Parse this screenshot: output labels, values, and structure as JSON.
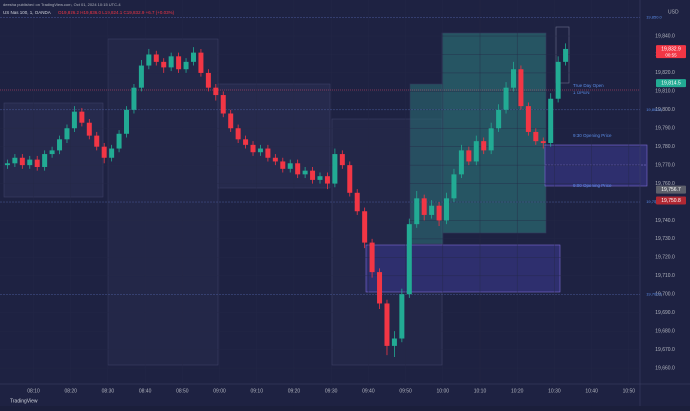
{
  "header": {
    "author": "deesha published on TradingView.com, Oct 01, 2024 10:15 UTC-4",
    "symbol": "US Nas 100, 1, OANDA",
    "readout": "O19,826.2 H19,836.0 L19,824.1 C19,832.9 +6.7 (+0.03%)",
    "currency": "USD",
    "brand": "TradingView"
  },
  "chart_data": {
    "type": "candlestick",
    "up_color": "#22ab94",
    "down_color": "#f23645",
    "x": [
      "08:03",
      "08:05",
      "08:07",
      "08:09",
      "08:11",
      "08:13",
      "08:15",
      "08:17",
      "08:19",
      "08:21",
      "08:23",
      "08:25",
      "08:27",
      "08:29",
      "08:31",
      "08:33",
      "08:35",
      "08:37",
      "08:39",
      "08:41",
      "08:43",
      "08:45",
      "08:47",
      "08:49",
      "08:51",
      "08:53",
      "08:55",
      "08:57",
      "08:59",
      "09:01",
      "09:03",
      "09:05",
      "09:07",
      "09:09",
      "09:11",
      "09:13",
      "09:15",
      "09:17",
      "09:19",
      "09:21",
      "09:23",
      "09:25",
      "09:27",
      "09:29",
      "09:31",
      "09:33",
      "09:35",
      "09:37",
      "09:39",
      "09:41",
      "09:43",
      "09:45",
      "09:47",
      "09:49",
      "09:51",
      "09:53",
      "09:55",
      "09:57",
      "09:59",
      "10:01",
      "10:03",
      "10:05",
      "10:07",
      "10:09",
      "10:11",
      "10:13",
      "10:15",
      "10:17",
      "10:19",
      "10:21",
      "10:23",
      "10:25",
      "10:27",
      "10:29",
      "10:31",
      "10:33"
    ],
    "ohlc": [
      [
        19770,
        19773,
        19768,
        19771
      ],
      [
        19771,
        19776,
        19769,
        19774
      ],
      [
        19774,
        19776,
        19768,
        19770
      ],
      [
        19770,
        19775,
        19768,
        19773
      ],
      [
        19773,
        19775,
        19767,
        19769
      ],
      [
        19769,
        19778,
        19767,
        19776
      ],
      [
        19776,
        19780,
        19774,
        19778
      ],
      [
        19778,
        19786,
        19776,
        19784
      ],
      [
        19784,
        19792,
        19782,
        19790
      ],
      [
        19790,
        19802,
        19788,
        19799
      ],
      [
        19799,
        19801,
        19791,
        19793
      ],
      [
        19793,
        19795,
        19784,
        19786
      ],
      [
        19786,
        19788,
        19778,
        19780
      ],
      [
        19780,
        19782,
        19771,
        19774
      ],
      [
        19774,
        19781,
        19772,
        19779
      ],
      [
        19779,
        19789,
        19777,
        19787
      ],
      [
        19787,
        19802,
        19785,
        19800
      ],
      [
        19800,
        19814,
        19798,
        19812
      ],
      [
        19812,
        19827,
        19810,
        19824
      ],
      [
        19824,
        19833,
        19822,
        19830
      ],
      [
        19830,
        19832,
        19824,
        19826
      ],
      [
        19826,
        19828,
        19820,
        19823
      ],
      [
        19823,
        19831,
        19821,
        19829
      ],
      [
        19829,
        19831,
        19820,
        19822
      ],
      [
        19822,
        19828,
        19820,
        19826
      ],
      [
        19826,
        19834,
        19824,
        19831
      ],
      [
        19831,
        19833,
        19818,
        19820
      ],
      [
        19820,
        19822,
        19810,
        19812
      ],
      [
        19812,
        19814,
        19805,
        19808
      ],
      [
        19808,
        19810,
        19796,
        19798
      ],
      [
        19798,
        19800,
        19788,
        19790
      ],
      [
        19790,
        19792,
        19782,
        19784
      ],
      [
        19784,
        19786,
        19779,
        19781
      ],
      [
        19781,
        19783,
        19775,
        19777
      ],
      [
        19777,
        19781,
        19775,
        19779
      ],
      [
        19779,
        19781,
        19772,
        19774
      ],
      [
        19774,
        19776,
        19770,
        19772
      ],
      [
        19772,
        19774,
        19766,
        19768
      ],
      [
        19768,
        19773,
        19766,
        19771
      ],
      [
        19771,
        19773,
        19763,
        19765
      ],
      [
        19765,
        19769,
        19763,
        19767
      ],
      [
        19767,
        19769,
        19760,
        19762
      ],
      [
        19762,
        19766,
        19760,
        19764
      ],
      [
        19764,
        19766,
        19757,
        19760
      ],
      [
        19760,
        19779,
        19758,
        19776
      ],
      [
        19776,
        19778,
        19768,
        19770
      ],
      [
        19770,
        19772,
        19753,
        19755
      ],
      [
        19755,
        19757,
        19743,
        19745
      ],
      [
        19745,
        19747,
        19725,
        19728
      ],
      [
        19728,
        19730,
        19709,
        19712
      ],
      [
        19712,
        19714,
        19692,
        19695
      ],
      [
        19695,
        19697,
        19667,
        19672
      ],
      [
        19672,
        19680,
        19666,
        19676
      ],
      [
        19676,
        19703,
        19674,
        19700
      ],
      [
        19700,
        19741,
        19698,
        19738
      ],
      [
        19738,
        19756,
        19736,
        19752
      ],
      [
        19752,
        19754,
        19740,
        19743
      ],
      [
        19743,
        19751,
        19741,
        19748
      ],
      [
        19748,
        19750,
        19737,
        19740
      ],
      [
        19740,
        19755,
        19738,
        19752
      ],
      [
        19752,
        19768,
        19750,
        19765
      ],
      [
        19765,
        19781,
        19763,
        19778
      ],
      [
        19778,
        19780,
        19770,
        19772
      ],
      [
        19772,
        19786,
        19770,
        19783
      ],
      [
        19783,
        19785,
        19776,
        19778
      ],
      [
        19778,
        19793,
        19776,
        19790
      ],
      [
        19790,
        19803,
        19788,
        19800
      ],
      [
        19800,
        19815,
        19798,
        19812
      ],
      [
        19812,
        19826,
        19810,
        19822
      ],
      [
        19822,
        19824,
        19800,
        19802
      ],
      [
        19802,
        19804,
        19786,
        19788
      ],
      [
        19788,
        19790,
        19781,
        19783
      ],
      [
        19783,
        19785,
        19779,
        19782
      ],
      [
        19782,
        19809,
        19780,
        19806
      ],
      [
        19806,
        19829,
        19804,
        19826
      ],
      [
        19826,
        19836,
        19824,
        19833
      ]
    ],
    "xlim": [
      "08:01",
      "10:53"
    ],
    "xticks": [
      "08:10",
      "08:20",
      "08:30",
      "08:40",
      "08:50",
      "09:00",
      "09:10",
      "09:20",
      "09:30",
      "09:40",
      "09:50",
      "10:00",
      "10:10",
      "10:20",
      "10:30",
      "10:40",
      "10:50"
    ],
    "ylim": [
      19653.5,
      19855.2
    ],
    "yticks": [
      {
        "value": 19660,
        "label": "19,660.0"
      },
      {
        "value": 19670,
        "label": "19,670.0"
      },
      {
        "value": 19680,
        "label": "19,680.0"
      },
      {
        "value": 19690,
        "label": "19,690.0"
      },
      {
        "value": 19700,
        "label": "19,700.0"
      },
      {
        "value": 19710,
        "label": "19,710.0"
      },
      {
        "value": 19720,
        "label": "19,720.0"
      },
      {
        "value": 19730,
        "label": "19,730.0"
      },
      {
        "value": 19740,
        "label": "19,740.0"
      },
      {
        "value": 19750,
        "label": "19,750.0"
      },
      {
        "value": 19760,
        "label": "19,760.0"
      },
      {
        "value": 19770,
        "label": "19,770.0"
      },
      {
        "value": 19780,
        "label": "19,780.0"
      },
      {
        "value": 19790,
        "label": "19,790.0"
      },
      {
        "value": 19800,
        "label": "19,800.0"
      },
      {
        "value": 19810,
        "label": "19,810.0"
      },
      {
        "value": 19820,
        "label": "19,820.0"
      },
      {
        "value": 19830,
        "label": "19,830.0"
      },
      {
        "value": 19840,
        "label": "19,840.0"
      }
    ],
    "levels": [
      {
        "value": 19850,
        "label": "19,850.0"
      },
      {
        "value": 19800,
        "label": "19,800.0"
      },
      {
        "value": 19750,
        "label": "19,750.0"
      },
      {
        "value": 19700,
        "label": "19,700.0"
      }
    ],
    "price_labels": [
      {
        "value": 19832.9,
        "label": "19,832.9",
        "color": "#f23645"
      },
      {
        "value": 19814.5,
        "label": "19,814.5",
        "color": "#22ab94"
      },
      {
        "value": 19756.7,
        "label": "19,756.7",
        "color": "#5d606b"
      },
      {
        "value": 19750.8,
        "label": "19,750.8",
        "color": "#b22833"
      }
    ],
    "countdown": "00:55",
    "annotations": [
      "True Day Open",
      "1 OPEN",
      "9:30 Opening Price",
      "9:00 Opening Price"
    ]
  }
}
